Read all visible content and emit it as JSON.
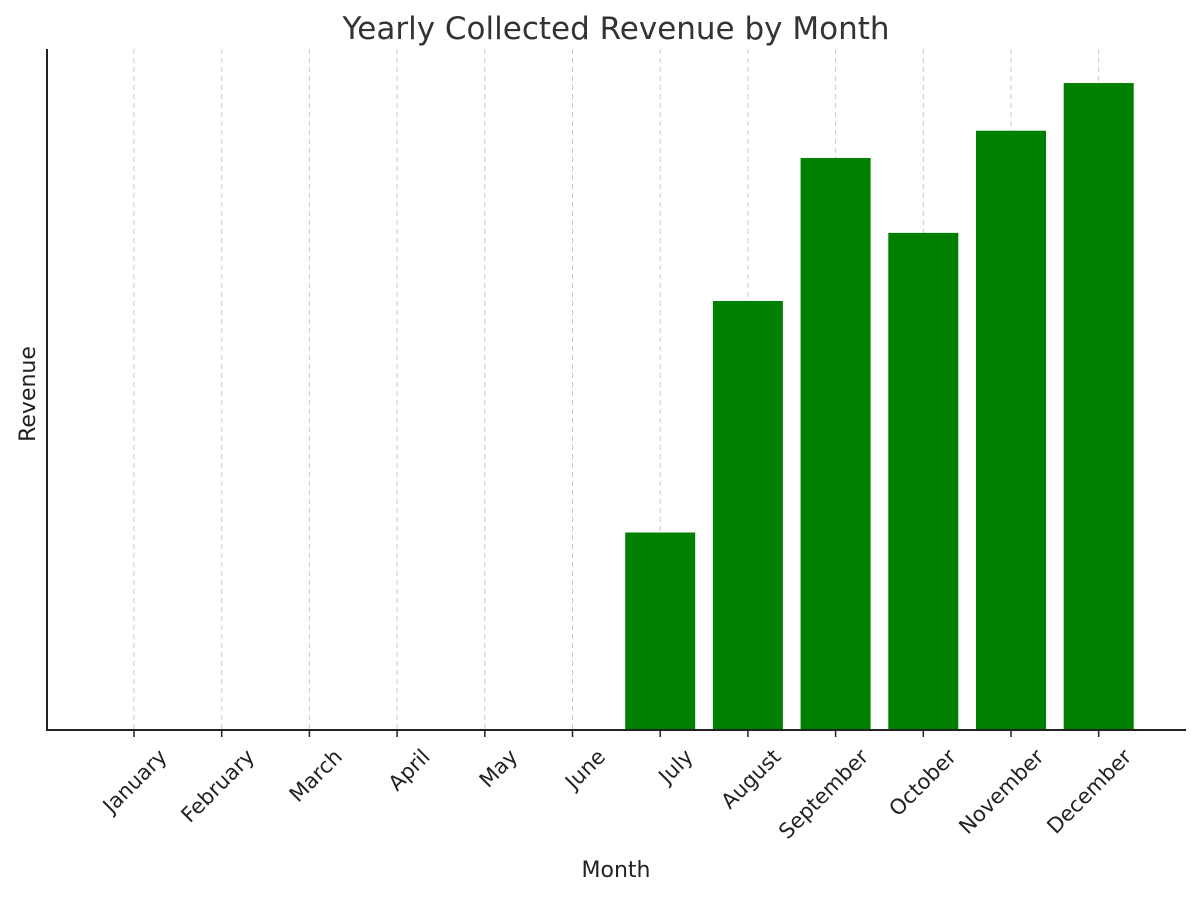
{
  "chart_data": {
    "type": "bar",
    "title": "Yearly Collected Revenue by Month",
    "xlabel": "Month",
    "ylabel": "Revenue",
    "categories": [
      "January",
      "February",
      "March",
      "April",
      "May",
      "June",
      "July",
      "August",
      "September",
      "October",
      "November",
      "December"
    ],
    "values": [
      0,
      0,
      0,
      0,
      0,
      0,
      2.9,
      6.3,
      8.4,
      7.3,
      8.8,
      9.5
    ],
    "ylim": [
      0,
      10
    ],
    "ticks_y_visible": false,
    "grid": "x-dashed",
    "bar_color": "#008000"
  }
}
